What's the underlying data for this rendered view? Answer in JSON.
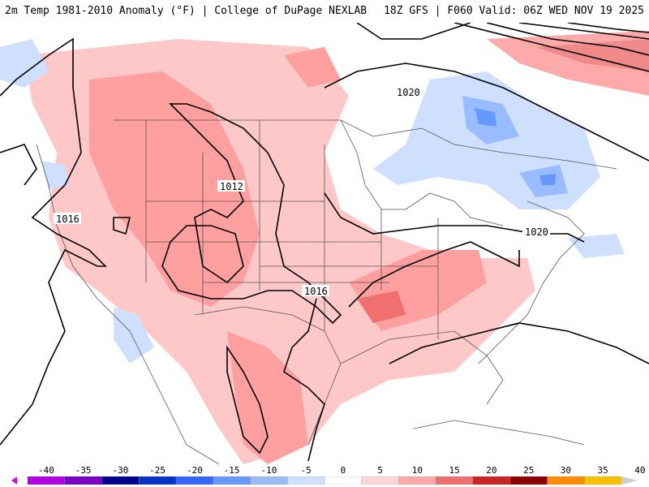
{
  "header": {
    "title": "2m Temp 1981-2010 Anomaly (°F) | College of DuPage NEXLAB",
    "run": "18Z GFS | F060 Valid: 06Z WED NOV 19 2025"
  },
  "isobar_labels": [
    {
      "name": "isobar-label-1020-northeast",
      "text": "1020"
    },
    {
      "name": "isobar-label-1012-rockies",
      "text": "1012"
    },
    {
      "name": "isobar-label-1016-west",
      "text": "1016"
    },
    {
      "name": "isobar-label-1020-eastcoast",
      "text": "1020"
    },
    {
      "name": "isobar-label-1016-southern-plains",
      "text": "1016"
    }
  ],
  "colorbar": {
    "ticks": [
      "-40",
      "-35",
      "-30",
      "-25",
      "-20",
      "-15",
      "-10",
      "-5",
      "0",
      "5",
      "10",
      "15",
      "20",
      "25",
      "30",
      "35",
      "40"
    ],
    "colors": [
      "#e600e6",
      "#b400e6",
      "#7a00c8",
      "#00008c",
      "#0033cc",
      "#3366ff",
      "#6699ff",
      "#99bbff",
      "#cfe0ff",
      "#ffffff",
      "#ffd6d6",
      "#ffaaaa",
      "#f07070",
      "#cc2222",
      "#8c0000",
      "#ff8c00",
      "#ffc000",
      "#cccccc"
    ]
  }
}
